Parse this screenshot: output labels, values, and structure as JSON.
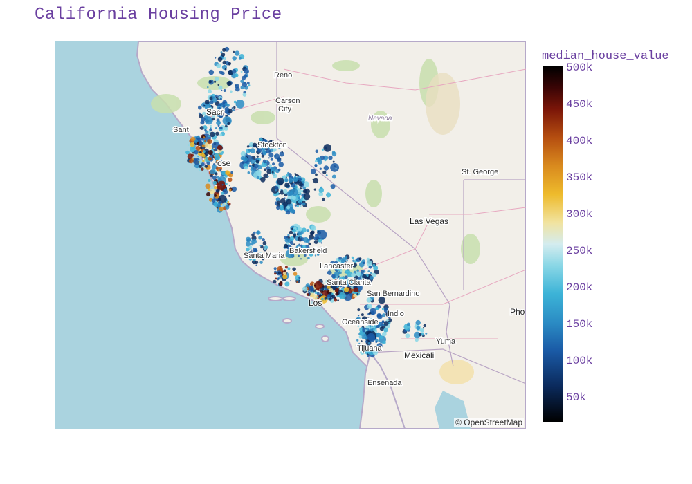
{
  "title": "California Housing Price",
  "colorbar": {
    "title": "median_house_value",
    "ticks": [
      "500k",
      "450k",
      "400k",
      "350k",
      "300k",
      "250k",
      "200k",
      "150k",
      "100k",
      "50k"
    ]
  },
  "attribution": "© OpenStreetMap",
  "map_labels": {
    "reno": "Reno",
    "carson_city_1": "Carson",
    "carson_city_2": "City",
    "nevada": "Nevada",
    "sacramento": "Sacr",
    "santa_rosa": "Sant",
    "stockton": "Stockton",
    "san_jose": "ose",
    "st_george": "St. George",
    "las_vegas": "Las Vegas",
    "bakersfield": "Bakersfield",
    "santa_maria": "Santa Maria",
    "lancaster": "Lancaster",
    "santa_clarita": "Santa Clarita",
    "san_bernardino": "San Bernardino",
    "los_angeles": "Los",
    "indio": "Indio",
    "oceanside": "Oceanside",
    "yuma": "Yuma",
    "tijuana": "Tijuana",
    "mexicali": "Mexicali",
    "ensenada": "Ensenada",
    "phoenix": "Pho"
  },
  "colors": {
    "title": "#6a3fa0",
    "ocean": "#aad3df",
    "land": "#f2efe9"
  }
}
